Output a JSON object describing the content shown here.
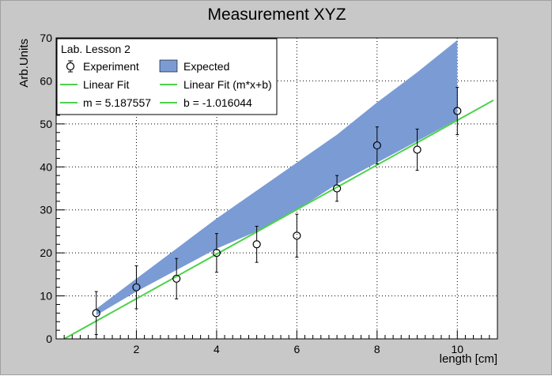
{
  "chart_data": {
    "type": "scatter",
    "title": "Measurement XYZ",
    "xlabel": "length [cm]",
    "ylabel": "Arb.Units",
    "xlim": [
      0,
      11
    ],
    "ylim": [
      0,
      70
    ],
    "x_ticks": [
      2,
      4,
      6,
      8,
      10
    ],
    "y_ticks": [
      0,
      10,
      20,
      30,
      40,
      50,
      60,
      70
    ],
    "grid": true,
    "legend_placement": "top-left",
    "legend_header": "Lab. Lesson 2",
    "series": [
      {
        "name": "Experiment",
        "kind": "points-with-errors",
        "x": [
          1,
          2,
          3,
          4,
          5,
          6,
          7,
          8,
          9,
          10
        ],
        "y": [
          6,
          12,
          14,
          20,
          22,
          24,
          35,
          45,
          44,
          53
        ],
        "yerr": [
          5,
          5,
          4.7,
          4.5,
          4.2,
          5,
          3,
          4.3,
          4.8,
          5.5
        ]
      },
      {
        "name": "Expected",
        "kind": "band",
        "x": [
          1,
          2,
          3,
          4,
          5,
          6,
          7,
          8,
          9,
          10
        ],
        "low": [
          5.5,
          11,
          16,
          21,
          25,
          30,
          36,
          41,
          46,
          51
        ],
        "high": [
          7,
          14,
          21,
          28,
          34.5,
          41,
          47.5,
          55,
          62,
          69.5
        ]
      },
      {
        "name": "Linear Fit",
        "kind": "line",
        "x": [
          0.2,
          10.9
        ],
        "y": [
          0,
          55.5
        ]
      }
    ],
    "fit_params": [
      {
        "label": "Linear Fit (m*x+b)"
      },
      {
        "label": "m = 5.187557"
      },
      {
        "label": "b = -1.016044"
      }
    ],
    "colors": {
      "band": "#7b9bd4",
      "fit": "#4cd24c",
      "points": "#000000",
      "frame_bg": "#c8c8c8",
      "plot_bg": "#ffffff"
    }
  }
}
